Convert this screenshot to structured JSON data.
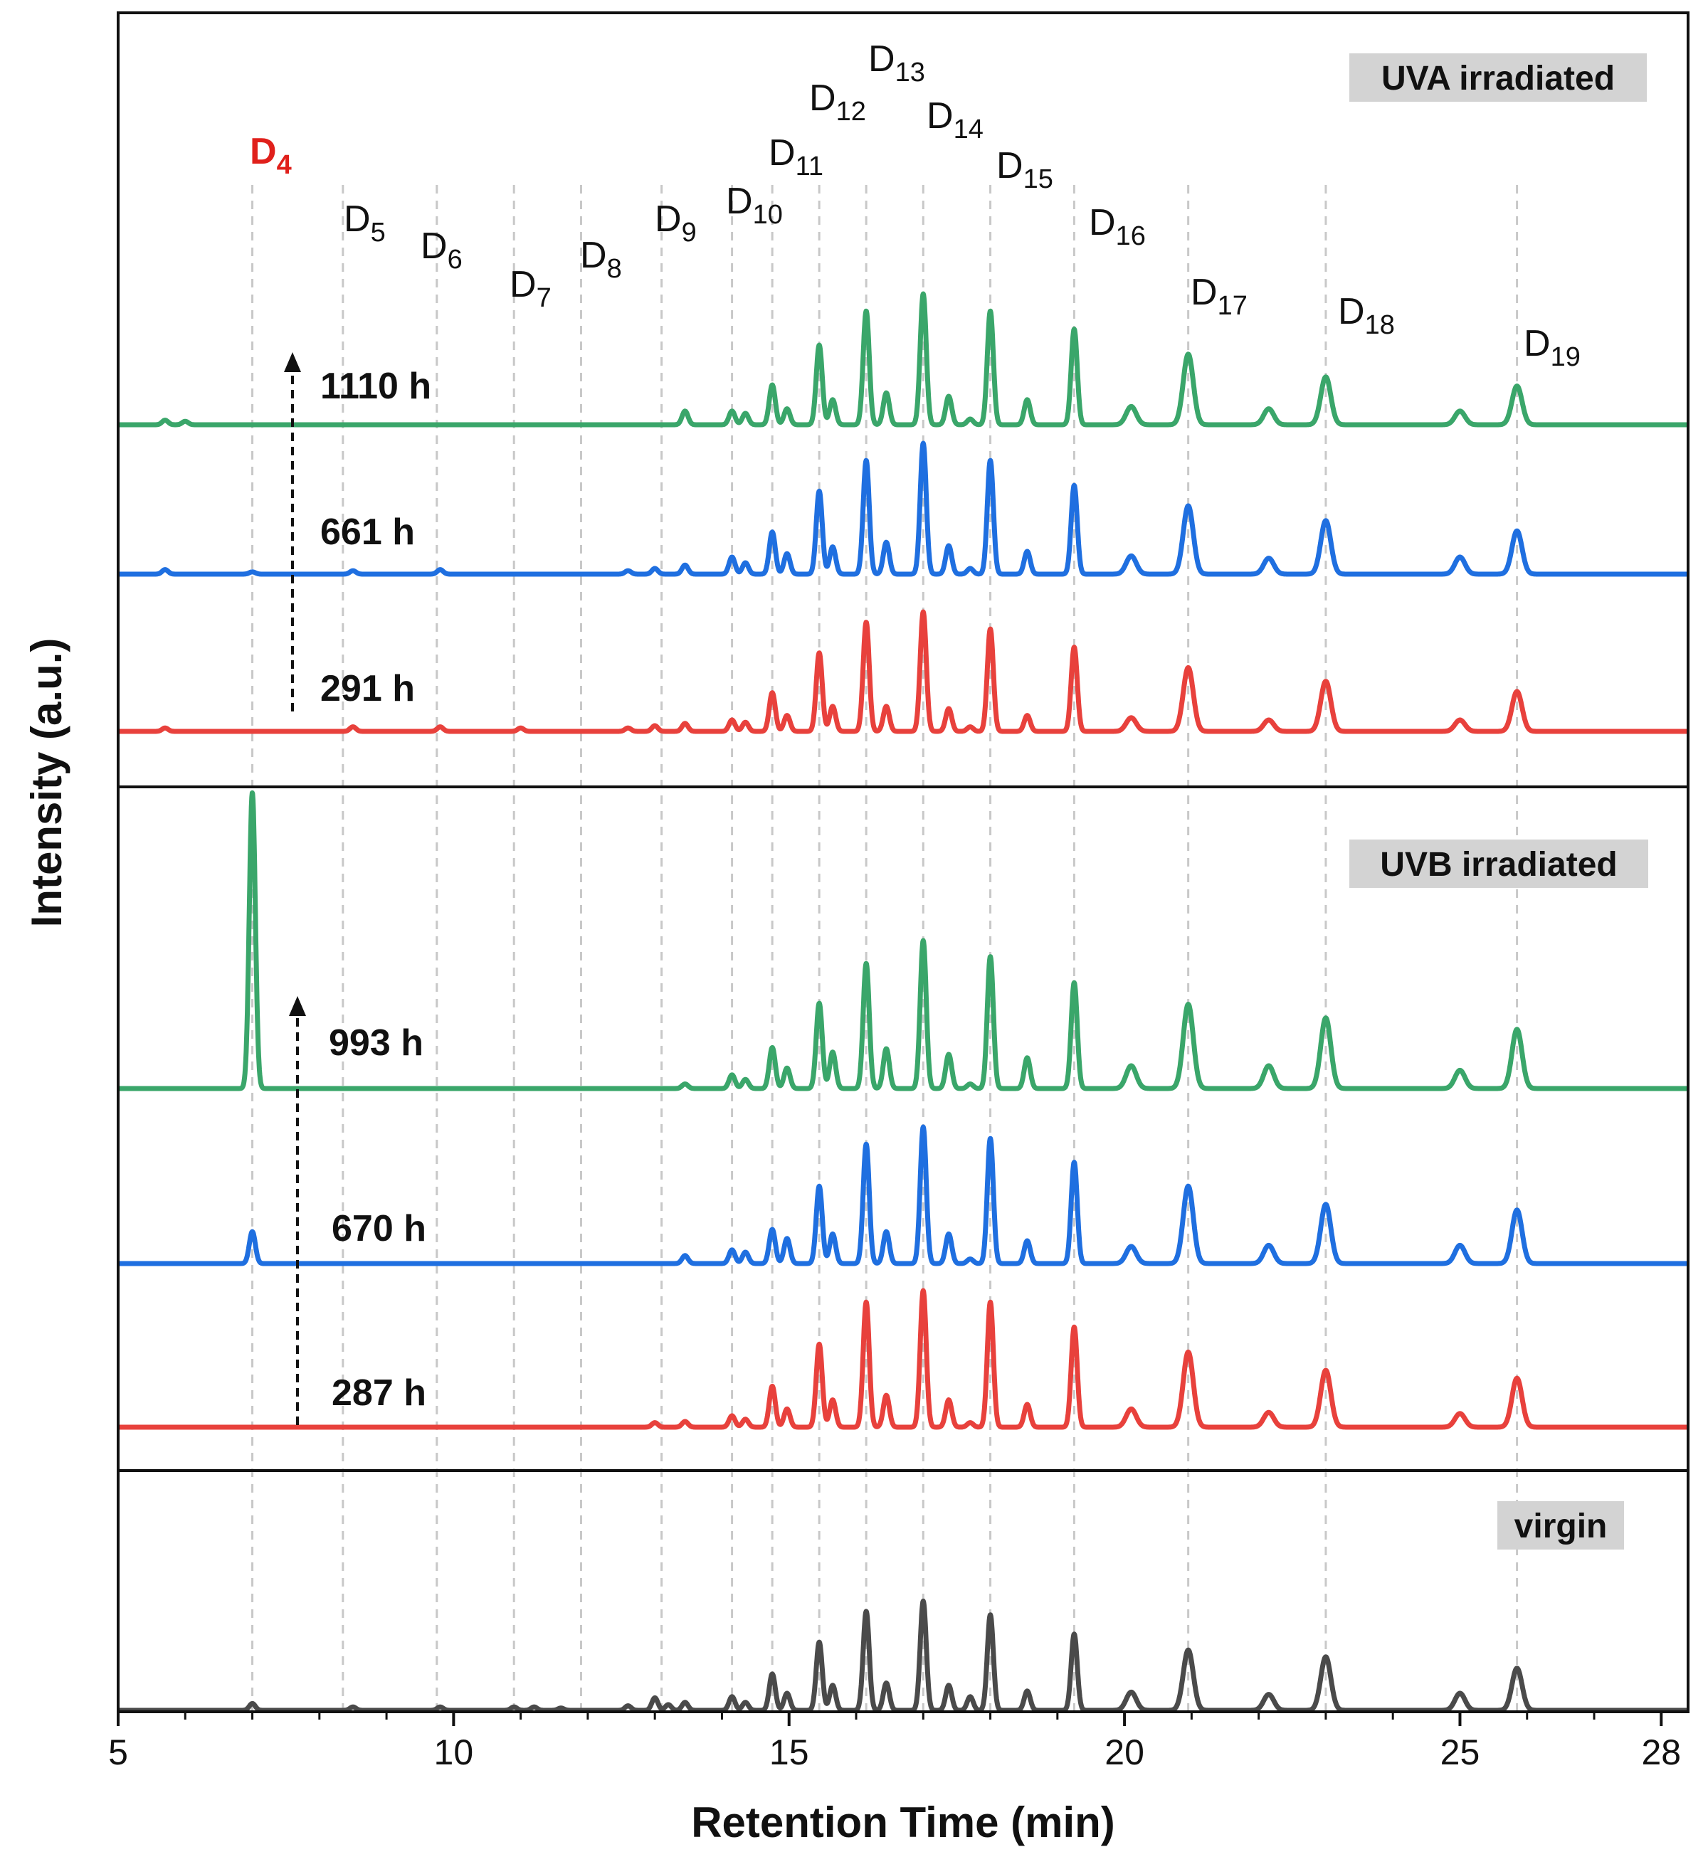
{
  "chart_data": {
    "type": "line",
    "title": "",
    "xlabel": "Retention Time (min)",
    "ylabel": "Intensity (a.u.)",
    "xlim": [
      5,
      28.4
    ],
    "x_ticks": [
      "5",
      "10",
      "15",
      "20",
      "25",
      "28"
    ],
    "x_tick_values": [
      5,
      10,
      15,
      20,
      25,
      28
    ],
    "grid": "vertical dashed guide lines at cyclic siloxane peaks",
    "colors": {
      "early": "#e8413c",
      "mid": "#1f6fe0",
      "late": "#3aa66a",
      "virgin": "#4a4a4a",
      "d4_label": "#e0201b",
      "guide": "#c8c8c8",
      "tag_bg": "#d3d3d3"
    },
    "peak_guides": [
      {
        "name": "D4",
        "base": "D",
        "sub": "4",
        "x": 7.0,
        "highlight": true
      },
      {
        "name": "D5",
        "base": "D",
        "sub": "5",
        "x": 8.35
      },
      {
        "name": "D6",
        "base": "D",
        "sub": "6",
        "x": 9.75
      },
      {
        "name": "D7",
        "base": "D",
        "sub": "7",
        "x": 10.9
      },
      {
        "name": "D8",
        "base": "D",
        "sub": "8",
        "x": 11.9
      },
      {
        "name": "D9",
        "base": "D",
        "sub": "9",
        "x": 13.1
      },
      {
        "name": "D10",
        "base": "D",
        "sub": "10",
        "x": 14.15
      },
      {
        "name": "D11",
        "base": "D",
        "sub": "11",
        "x": 14.75
      },
      {
        "name": "D12",
        "base": "D",
        "sub": "12",
        "x": 15.45
      },
      {
        "name": "D13",
        "base": "D",
        "sub": "13",
        "x": 16.15
      },
      {
        "name": "D14",
        "base": "D",
        "sub": "14",
        "x": 17.0
      },
      {
        "name": "D15",
        "base": "D",
        "sub": "15",
        "x": 18.0
      },
      {
        "name": "D16",
        "base": "D",
        "sub": "16",
        "x": 19.25
      },
      {
        "name": "D17",
        "base": "D",
        "sub": "17",
        "x": 20.95
      },
      {
        "name": "D18",
        "base": "D",
        "sub": "18",
        "x": 23.0
      },
      {
        "name": "D19",
        "base": "D",
        "sub": "19",
        "x": 25.85
      }
    ],
    "panels": [
      {
        "tag": "UVA irradiated",
        "series": [
          {
            "name": "1110 h",
            "color_key": "late",
            "peaks": [
              [
                5.7,
                0.04
              ],
              [
                6.0,
                0.03
              ],
              [
                13.45,
                0.12
              ],
              [
                14.15,
                0.12
              ],
              [
                14.35,
                0.1
              ],
              [
                14.75,
                0.35
              ],
              [
                14.97,
                0.14
              ],
              [
                15.45,
                0.7
              ],
              [
                15.65,
                0.22
              ],
              [
                16.15,
                1.0
              ],
              [
                16.45,
                0.28
              ],
              [
                17.0,
                1.15
              ],
              [
                17.38,
                0.25
              ],
              [
                17.7,
                0.05
              ],
              [
                18.0,
                1.0
              ],
              [
                18.55,
                0.22
              ],
              [
                19.25,
                0.84
              ],
              [
                20.1,
                0.16
              ],
              [
                20.95,
                0.62
              ],
              [
                22.15,
                0.14
              ],
              [
                23.0,
                0.42
              ],
              [
                25.0,
                0.12
              ],
              [
                25.85,
                0.34
              ]
            ]
          },
          {
            "name": "661 h",
            "color_key": "mid",
            "peaks": [
              [
                5.7,
                0.04
              ],
              [
                7.0,
                0.02
              ],
              [
                8.5,
                0.03
              ],
              [
                9.8,
                0.04
              ],
              [
                12.6,
                0.03
              ],
              [
                13.0,
                0.05
              ],
              [
                13.45,
                0.08
              ],
              [
                14.15,
                0.15
              ],
              [
                14.35,
                0.1
              ],
              [
                14.75,
                0.37
              ],
              [
                14.97,
                0.18
              ],
              [
                15.45,
                0.73
              ],
              [
                15.65,
                0.24
              ],
              [
                16.15,
                1.0
              ],
              [
                16.45,
                0.28
              ],
              [
                17.0,
                1.15
              ],
              [
                17.38,
                0.25
              ],
              [
                17.7,
                0.05
              ],
              [
                18.0,
                1.0
              ],
              [
                18.55,
                0.2
              ],
              [
                19.25,
                0.78
              ],
              [
                20.1,
                0.16
              ],
              [
                20.95,
                0.6
              ],
              [
                22.15,
                0.14
              ],
              [
                23.0,
                0.47
              ],
              [
                25.0,
                0.15
              ],
              [
                25.85,
                0.38
              ]
            ]
          },
          {
            "name": "291 h",
            "color_key": "early",
            "peaks": [
              [
                5.7,
                0.03
              ],
              [
                8.5,
                0.04
              ],
              [
                9.8,
                0.04
              ],
              [
                11.0,
                0.03
              ],
              [
                12.6,
                0.03
              ],
              [
                13.0,
                0.05
              ],
              [
                13.45,
                0.07
              ],
              [
                14.15,
                0.1
              ],
              [
                14.35,
                0.08
              ],
              [
                14.75,
                0.34
              ],
              [
                14.97,
                0.14
              ],
              [
                15.45,
                0.69
              ],
              [
                15.65,
                0.22
              ],
              [
                16.15,
                0.96
              ],
              [
                16.45,
                0.22
              ],
              [
                17.0,
                1.05
              ],
              [
                17.38,
                0.2
              ],
              [
                17.7,
                0.04
              ],
              [
                18.0,
                0.9
              ],
              [
                18.55,
                0.14
              ],
              [
                19.25,
                0.74
              ],
              [
                20.1,
                0.12
              ],
              [
                20.95,
                0.56
              ],
              [
                22.15,
                0.1
              ],
              [
                23.0,
                0.44
              ],
              [
                25.0,
                0.1
              ],
              [
                25.85,
                0.35
              ]
            ]
          }
        ]
      },
      {
        "tag": "UVB irradiated",
        "series": [
          {
            "name": "993 h",
            "color_key": "late",
            "peaks": [
              [
                7.0,
                2.6
              ],
              [
                13.45,
                0.04
              ],
              [
                14.15,
                0.12
              ],
              [
                14.35,
                0.08
              ],
              [
                14.75,
                0.36
              ],
              [
                14.97,
                0.18
              ],
              [
                15.45,
                0.75
              ],
              [
                15.65,
                0.32
              ],
              [
                16.15,
                1.1
              ],
              [
                16.45,
                0.35
              ],
              [
                17.0,
                1.3
              ],
              [
                17.38,
                0.3
              ],
              [
                17.7,
                0.04
              ],
              [
                18.0,
                1.16
              ],
              [
                18.55,
                0.27
              ],
              [
                19.25,
                0.93
              ],
              [
                20.1,
                0.2
              ],
              [
                20.95,
                0.74
              ],
              [
                22.15,
                0.2
              ],
              [
                23.0,
                0.62
              ],
              [
                25.0,
                0.16
              ],
              [
                25.85,
                0.52
              ]
            ]
          },
          {
            "name": "670 h",
            "color_key": "mid",
            "peaks": [
              [
                7.0,
                0.28
              ],
              [
                13.45,
                0.07
              ],
              [
                14.15,
                0.12
              ],
              [
                14.35,
                0.1
              ],
              [
                14.75,
                0.3
              ],
              [
                14.97,
                0.22
              ],
              [
                15.45,
                0.68
              ],
              [
                15.65,
                0.26
              ],
              [
                16.15,
                1.05
              ],
              [
                16.45,
                0.28
              ],
              [
                17.0,
                1.2
              ],
              [
                17.38,
                0.26
              ],
              [
                17.7,
                0.04
              ],
              [
                18.0,
                1.1
              ],
              [
                18.55,
                0.2
              ],
              [
                19.25,
                0.89
              ],
              [
                20.1,
                0.15
              ],
              [
                20.95,
                0.68
              ],
              [
                22.15,
                0.16
              ],
              [
                23.0,
                0.52
              ],
              [
                25.0,
                0.16
              ],
              [
                25.85,
                0.47
              ]
            ]
          },
          {
            "name": "287 h",
            "color_key": "early",
            "peaks": [
              [
                13.0,
                0.04
              ],
              [
                13.45,
                0.05
              ],
              [
                14.15,
                0.1
              ],
              [
                14.35,
                0.07
              ],
              [
                14.75,
                0.36
              ],
              [
                14.97,
                0.16
              ],
              [
                15.45,
                0.73
              ],
              [
                15.65,
                0.24
              ],
              [
                16.15,
                1.1
              ],
              [
                16.45,
                0.28
              ],
              [
                17.0,
                1.2
              ],
              [
                17.38,
                0.24
              ],
              [
                17.7,
                0.04
              ],
              [
                18.0,
                1.1
              ],
              [
                18.55,
                0.2
              ],
              [
                19.25,
                0.88
              ],
              [
                20.1,
                0.16
              ],
              [
                20.95,
                0.66
              ],
              [
                22.15,
                0.13
              ],
              [
                23.0,
                0.5
              ],
              [
                25.0,
                0.12
              ],
              [
                25.85,
                0.43
              ]
            ]
          }
        ]
      },
      {
        "tag": "virgin",
        "series": [
          {
            "name": "virgin",
            "color_key": "virgin",
            "peaks": [
              [
                7.0,
                0.06
              ],
              [
                8.5,
                0.03
              ],
              [
                9.8,
                0.03
              ],
              [
                10.9,
                0.03
              ],
              [
                11.2,
                0.03
              ],
              [
                11.6,
                0.02
              ],
              [
                12.6,
                0.04
              ],
              [
                13.0,
                0.11
              ],
              [
                13.2,
                0.05
              ],
              [
                13.45,
                0.07
              ],
              [
                14.15,
                0.12
              ],
              [
                14.35,
                0.07
              ],
              [
                14.75,
                0.32
              ],
              [
                14.97,
                0.15
              ],
              [
                15.45,
                0.6
              ],
              [
                15.65,
                0.22
              ],
              [
                16.15,
                0.87
              ],
              [
                16.45,
                0.24
              ],
              [
                17.0,
                0.96
              ],
              [
                17.38,
                0.22
              ],
              [
                17.7,
                0.12
              ],
              [
                18.0,
                0.84
              ],
              [
                18.55,
                0.17
              ],
              [
                19.25,
                0.67
              ],
              [
                20.1,
                0.16
              ],
              [
                20.95,
                0.53
              ],
              [
                22.15,
                0.14
              ],
              [
                23.0,
                0.47
              ],
              [
                25.0,
                0.15
              ],
              [
                25.85,
                0.37
              ]
            ]
          }
        ]
      }
    ]
  }
}
